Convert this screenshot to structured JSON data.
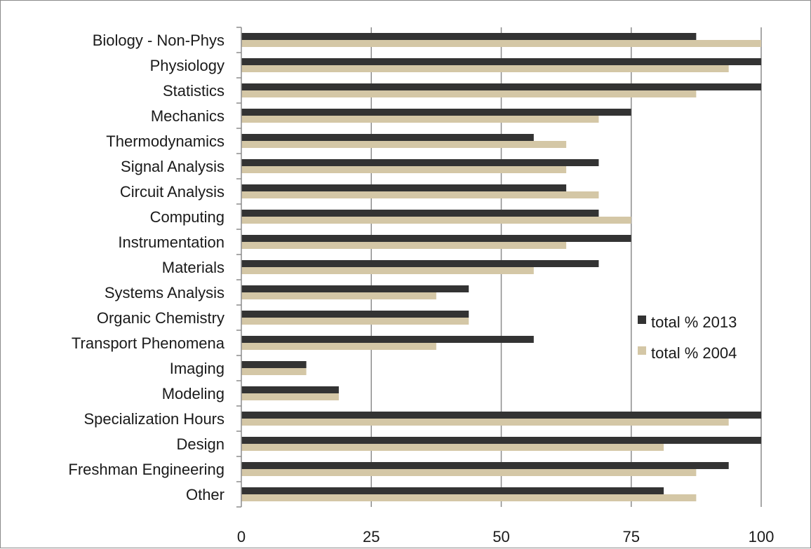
{
  "chart_data": {
    "type": "bar",
    "orientation": "horizontal",
    "categories": [
      "Biology - Non-Phys",
      "Physiology",
      "Statistics",
      "Mechanics",
      "Thermodynamics",
      "Signal Analysis",
      "Circuit Analysis",
      "Computing",
      "Instrumentation",
      "Materials",
      "Systems Analysis",
      "Organic Chemistry",
      "Transport Phenomena",
      "Imaging",
      "Modeling",
      "Specialization Hours",
      "Design",
      "Freshman Engineering",
      "Other"
    ],
    "series": [
      {
        "name": "total % 2013",
        "color": "#333333",
        "values": [
          87.5,
          100,
          100,
          75,
          56.25,
          68.75,
          62.5,
          68.75,
          75,
          68.75,
          43.75,
          43.75,
          56.25,
          12.5,
          18.75,
          100,
          100,
          93.75,
          81.25
        ]
      },
      {
        "name": "total % 2004",
        "color": "#d4c7a6",
        "values": [
          100,
          93.75,
          87.5,
          68.75,
          62.5,
          62.5,
          68.75,
          75,
          62.5,
          56.25,
          37.5,
          43.75,
          37.5,
          12.5,
          18.75,
          93.75,
          81.25,
          87.5,
          87.5
        ]
      }
    ],
    "xlim": [
      0,
      100
    ],
    "xticks": [
      0,
      25,
      50,
      75,
      100
    ],
    "xtick_labels": [
      "0",
      "25",
      "50",
      "75",
      "100"
    ],
    "grid": "vertical",
    "legend_position": "right",
    "title": "",
    "xlabel": "",
    "ylabel": ""
  }
}
